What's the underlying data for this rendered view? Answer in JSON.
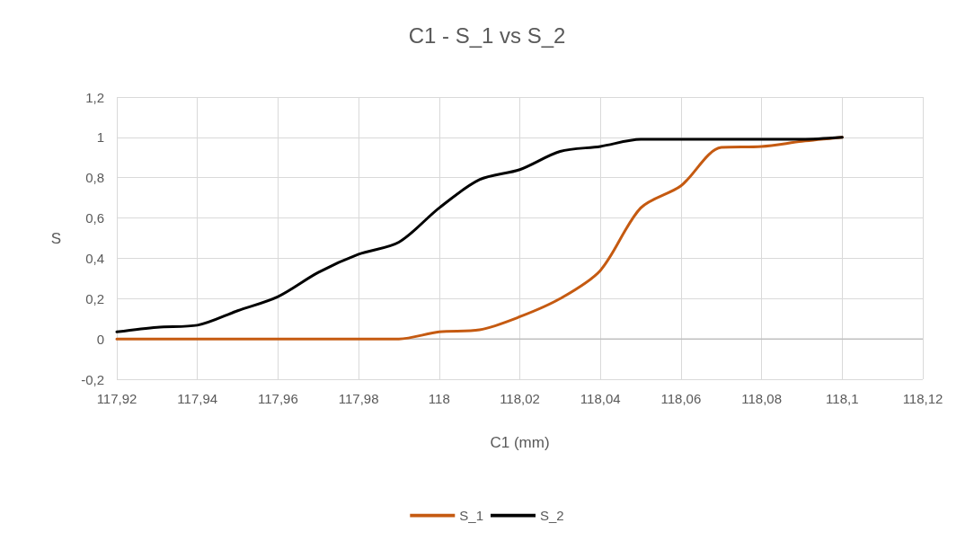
{
  "chart_data": {
    "type": "line",
    "title": "C1 - S_1 vs S_2",
    "xlabel": "C1 (mm)",
    "ylabel": "S",
    "x": [
      117.92,
      117.93,
      117.94,
      117.95,
      117.96,
      117.97,
      117.98,
      117.99,
      118.0,
      118.01,
      118.02,
      118.03,
      118.04,
      118.05,
      118.06,
      118.07,
      118.08,
      118.09,
      118.1
    ],
    "series": [
      {
        "name": "S_1",
        "color": "#c55a11",
        "values": [
          0,
          0,
          0,
          0,
          0,
          0,
          0,
          0,
          0.035,
          0.045,
          0.11,
          0.2,
          0.34,
          0.65,
          0.76,
          0.95,
          0.955,
          0.98,
          1
        ]
      },
      {
        "name": "S_2",
        "color": "#000000",
        "values": [
          0.035,
          0.058,
          0.068,
          0.14,
          0.21,
          0.33,
          0.42,
          0.48,
          0.65,
          0.79,
          0.84,
          0.93,
          0.955,
          0.99,
          0.99,
          0.99,
          0.99,
          0.99,
          1
        ]
      }
    ],
    "xlim": [
      117.92,
      118.12
    ],
    "xticks": [
      {
        "value": 117.92,
        "label": "117,92"
      },
      {
        "value": 117.94,
        "label": "117,94"
      },
      {
        "value": 117.96,
        "label": "117,96"
      },
      {
        "value": 117.98,
        "label": "117,98"
      },
      {
        "value": 118,
        "label": "118"
      },
      {
        "value": 118.02,
        "label": "118,02"
      },
      {
        "value": 118.04,
        "label": "118,04"
      },
      {
        "value": 118.06,
        "label": "118,06"
      },
      {
        "value": 118.08,
        "label": "118,08"
      },
      {
        "value": 118.1,
        "label": "118,1"
      },
      {
        "value": 118.12,
        "label": "118,12"
      }
    ],
    "ylim": [
      -0.2,
      1.2
    ],
    "yticks": [
      {
        "value": -0.2,
        "label": "-0,2"
      },
      0,
      {
        "value": 0.2,
        "label": "0,2"
      },
      {
        "value": 0.4,
        "label": "0,4"
      },
      {
        "value": 0.6,
        "label": "0,6"
      },
      {
        "value": 0.8,
        "label": "0,8"
      },
      1,
      {
        "value": 1.2,
        "label": "1,2"
      }
    ],
    "grid": true,
    "legend": "bottom",
    "marker": "none",
    "line_style": "solid"
  }
}
